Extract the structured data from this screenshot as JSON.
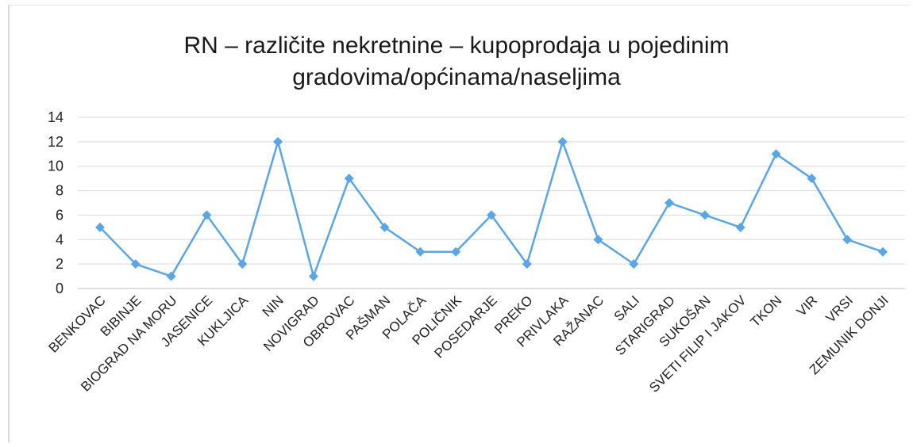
{
  "chart_data": {
    "type": "line",
    "title": "RN – različite nekretnine – kupoprodaja u pojedinim gradovima/općinama/naseljima",
    "title_lines": [
      "RN – različite nekretnine – kupoprodaja  u  pojedinim",
      "gradovima/općinama/naseljima"
    ],
    "categories": [
      "BENKOVAC",
      "BIBINJE",
      "BIOGRAD NA MORU",
      "JASENICE",
      "KUKLJICA",
      "NIN",
      "NOVIGRAD",
      "OBROVAC",
      "PAŠMAN",
      "POLAČA",
      "POLIČNIK",
      "POSEDARJE",
      "PREKO",
      "PRIVLAKA",
      "RAŽANAC",
      "SALI",
      "STARIGRAD",
      "SUKOŠAN",
      "SVETI FILIP I JAKOV",
      "TKON",
      "VIR",
      "VRSI",
      "ZEMUNIK DONJI"
    ],
    "values": [
      5,
      2,
      1,
      6,
      2,
      12,
      1,
      9,
      5,
      3,
      3,
      6,
      2,
      12,
      4,
      2,
      7,
      6,
      5,
      11,
      9,
      4,
      3
    ],
    "ylim": [
      0,
      14
    ],
    "yticks": [
      "0",
      "2",
      "4",
      "6",
      "8",
      "10",
      "12",
      "14"
    ],
    "grid": true,
    "legend": "none",
    "xlabel": "",
    "ylabel": "",
    "color": "#5aa5e6"
  }
}
